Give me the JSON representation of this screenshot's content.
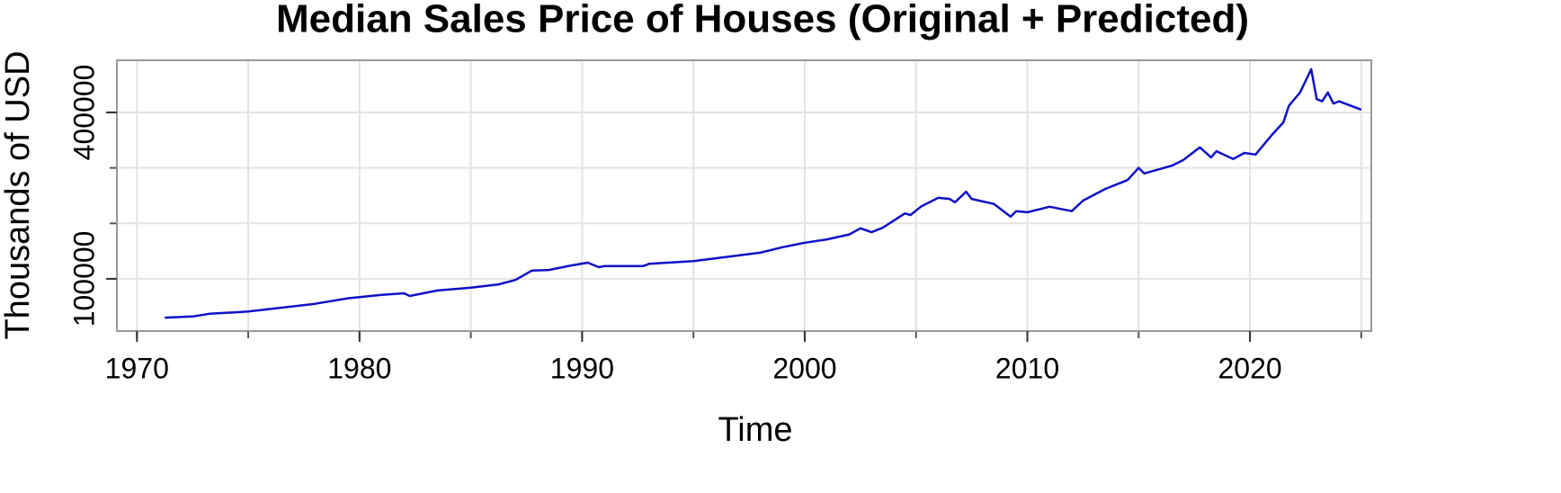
{
  "chart_data": {
    "type": "line",
    "title": "Median Sales Price of Houses (Original + Predicted)",
    "x_label": "Time",
    "y_label": "Thousands of USD",
    "x": [
      1971.25,
      1972.5,
      1973.25,
      1975,
      1976.5,
      1978,
      1979.5,
      1981,
      1982,
      1982.25,
      1983.5,
      1985,
      1986.25,
      1987,
      1987.75,
      1988.5,
      1989.5,
      1990.25,
      1990.75,
      1991,
      1992.75,
      1993,
      1995,
      1996,
      1997,
      1998,
      1999,
      2000,
      2001,
      2002,
      2002.5,
      2003,
      2003.5,
      2004,
      2004.5,
      2004.75,
      2005.25,
      2006,
      2006.5,
      2006.75,
      2007.25,
      2007.5,
      2008.5,
      2009.25,
      2009.5,
      2010,
      2011,
      2012,
      2012.5,
      2013.5,
      2014.5,
      2015,
      2015.25,
      2016.5,
      2017,
      2017.75,
      2018.25,
      2018.5,
      2019.25,
      2019.75,
      2020.25,
      2021,
      2021.5,
      2021.75,
      2022.25,
      2022.75,
      2023,
      2023.25,
      2023.5,
      2023.75,
      2024,
      2025
    ],
    "series": [
      {
        "name": "Median Sales Price",
        "color": "#1010c8",
        "values": [
          30000,
          32000,
          37000,
          41000,
          48000,
          55000,
          65000,
          71000,
          74000,
          69000,
          79000,
          84000,
          90000,
          98000,
          115000,
          116000,
          124000,
          129000,
          121000,
          123000,
          123000,
          127000,
          132000,
          137000,
          142000,
          147000,
          157000,
          165000,
          171000,
          180000,
          191000,
          184000,
          192000,
          205000,
          218000,
          215000,
          231000,
          246000,
          244000,
          238000,
          257000,
          244000,
          235000,
          212000,
          222000,
          220000,
          230000,
          222000,
          241000,
          262000,
          278000,
          300000,
          290000,
          304000,
          314000,
          337000,
          319000,
          330000,
          316000,
          327000,
          324000,
          360000,
          382000,
          412000,
          436000,
          478000,
          424000,
          420000,
          436000,
          416000,
          420000,
          405000
        ]
      }
    ],
    "xlim": [
      1969.1,
      2025.45
    ],
    "ylim": [
      5800,
      494000
    ],
    "xticks": [
      1970,
      1980,
      1990,
      2000,
      2010,
      2020
    ],
    "xgrid": [
      1970,
      1975,
      1980,
      1985,
      1990,
      1995,
      2000,
      2005,
      2010,
      2015,
      2020,
      2025
    ],
    "yticks": [
      100000,
      400000
    ],
    "ygrid": [
      100000,
      200000,
      300000,
      400000
    ],
    "grid": true
  }
}
